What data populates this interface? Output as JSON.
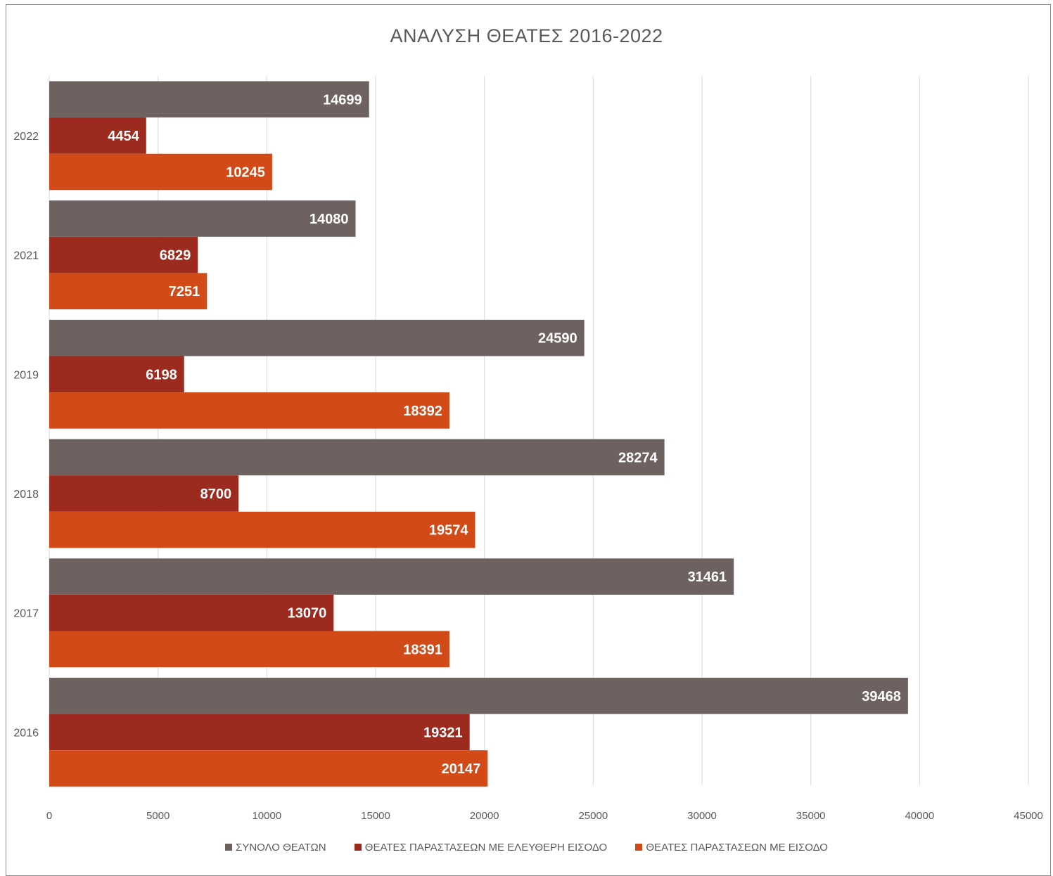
{
  "chart_data": {
    "type": "bar",
    "orientation": "horizontal",
    "title": "ΑΝΑΛΥΣΗ ΘΕΑΤΕΣ 2016-2022",
    "categories": [
      "2022",
      "2021",
      "2019",
      "2018",
      "2017",
      "2016"
    ],
    "series": [
      {
        "name": "ΣΥΝΟΛΟ ΘΕΑΤΩΝ",
        "color": "#6e6260",
        "values": [
          14699,
          14080,
          24590,
          28274,
          31461,
          39468
        ]
      },
      {
        "name": "ΘΕΑΤΕΣ ΠΑΡΑΣΤΑΣΕΩΝ ΜΕ ΕΛΕΥΘΕΡΗ ΕΙΣΟΔΟ",
        "color": "#9c2a1e",
        "values": [
          4454,
          6829,
          6198,
          8700,
          13070,
          19321
        ]
      },
      {
        "name": "ΘΕΑΤΕΣ ΠΑΡΑΣΤΑΣΕΩΝ ΜΕ ΕΙΣΟΔΟ",
        "color": "#d24a18",
        "values": [
          10245,
          7251,
          18392,
          19574,
          18391,
          20147
        ]
      }
    ],
    "xlim": [
      0,
      45000
    ],
    "xticks": [
      0,
      5000,
      10000,
      15000,
      20000,
      25000,
      30000,
      35000,
      40000,
      45000
    ],
    "grid": true,
    "data_labels": true,
    "legend_position": "bottom"
  }
}
